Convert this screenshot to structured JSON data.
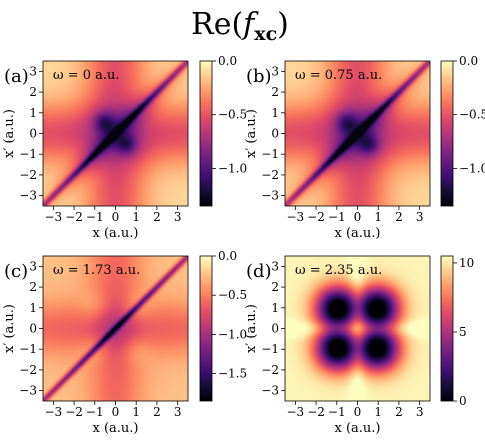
{
  "figure": {
    "title_main": "Re(",
    "title_symbol": "f",
    "title_subscript": "xc",
    "title_close": ")"
  },
  "colors": {
    "magma": [
      "#000004",
      "#140e36",
      "#3b0f70",
      "#641a80",
      "#8c2981",
      "#b73779",
      "#de4968",
      "#f7705c",
      "#fe9f6d",
      "#fecf92",
      "#fcfdbf"
    ]
  },
  "chart_data": [
    {
      "type": "heatmap",
      "panel_label": "(a)",
      "annotation": "ω = 0 a.u.",
      "xlabel": "x (a.u.)",
      "ylabel": "x′ (a.u.)",
      "xlim": [
        -3.5,
        3.5
      ],
      "ylim": [
        -3.5,
        3.5
      ],
      "xticks": [
        -3,
        -2,
        -1,
        0,
        1,
        2,
        3
      ],
      "yticks": [
        -3,
        -2,
        -1,
        0,
        1,
        2,
        3
      ],
      "xtick_labels": [
        "−3",
        "−2",
        "−1",
        "0",
        "1",
        "2",
        "3"
      ],
      "ytick_labels": [
        "−3",
        "−2",
        "−1",
        "0",
        "1",
        "2",
        "3"
      ],
      "colorbar": {
        "min": -1.35,
        "max": 0.0,
        "ticks": [
          0.0,
          -0.5,
          -1.0
        ],
        "tick_labels": [
          "0.0",
          "−0.5",
          "−1.0"
        ]
      },
      "pattern": "diagonal"
    },
    {
      "type": "heatmap",
      "panel_label": "(b)",
      "annotation": "ω = 0.75 a.u.",
      "xlabel": "x (a.u.)",
      "ylabel": "x′ (a.u.)",
      "xlim": [
        -3.5,
        3.5
      ],
      "ylim": [
        -3.5,
        3.5
      ],
      "xticks": [
        -3,
        -2,
        -1,
        0,
        1,
        2,
        3
      ],
      "yticks": [
        -3,
        -2,
        -1,
        0,
        1,
        2,
        3
      ],
      "xtick_labels": [
        "−3",
        "−2",
        "−1",
        "0",
        "1",
        "2",
        "3"
      ],
      "ytick_labels": [
        "−3",
        "−2",
        "−1",
        "0",
        "1",
        "2",
        "3"
      ],
      "colorbar": {
        "min": -1.35,
        "max": 0.0,
        "ticks": [
          0.0,
          -0.5,
          -1.0
        ],
        "tick_labels": [
          "0.0",
          "−0.5",
          "−1.0"
        ]
      },
      "pattern": "diagonal"
    },
    {
      "type": "heatmap",
      "panel_label": "(c)",
      "annotation": "ω = 1.73 a.u.",
      "xlabel": "x (a.u.)",
      "ylabel": "x′ (a.u.)",
      "xlim": [
        -3.5,
        3.5
      ],
      "ylim": [
        -3.5,
        3.5
      ],
      "xticks": [
        -3,
        -2,
        -1,
        0,
        1,
        2,
        3
      ],
      "yticks": [
        -3,
        -2,
        -1,
        0,
        1,
        2,
        3
      ],
      "xtick_labels": [
        "−3",
        "−2",
        "−1",
        "0",
        "1",
        "2",
        "3"
      ],
      "ytick_labels": [
        "−3",
        "−2",
        "−1",
        "0",
        "1",
        "2",
        "3"
      ],
      "colorbar": {
        "min": -1.85,
        "max": 0.0,
        "ticks": [
          0.0,
          -0.5,
          -1.0,
          -1.5
        ],
        "tick_labels": [
          "0.0",
          "−0.5",
          "−1.0",
          "−1.5"
        ]
      },
      "pattern": "diagonal-lobes"
    },
    {
      "type": "heatmap",
      "panel_label": "(d)",
      "annotation": "ω = 2.35 a.u.",
      "xlabel": "x (a.u.)",
      "ylabel": "x′ (a.u.)",
      "xlim": [
        -3.5,
        3.5
      ],
      "ylim": [
        -3.5,
        3.5
      ],
      "xticks": [
        -3,
        -2,
        -1,
        0,
        1,
        2,
        3
      ],
      "yticks": [
        -3,
        -2,
        -1,
        0,
        1,
        2,
        3
      ],
      "xtick_labels": [
        "−3",
        "−2",
        "−1",
        "0",
        "1",
        "2",
        "3"
      ],
      "ytick_labels": [
        "−3",
        "−2",
        "−1",
        "0",
        "1",
        "2",
        "3"
      ],
      "colorbar": {
        "min": 0,
        "max": 10.5,
        "ticks": [
          10,
          5,
          0
        ],
        "tick_labels": [
          "10",
          "5",
          "0"
        ]
      },
      "pattern": "four-lobes"
    }
  ]
}
